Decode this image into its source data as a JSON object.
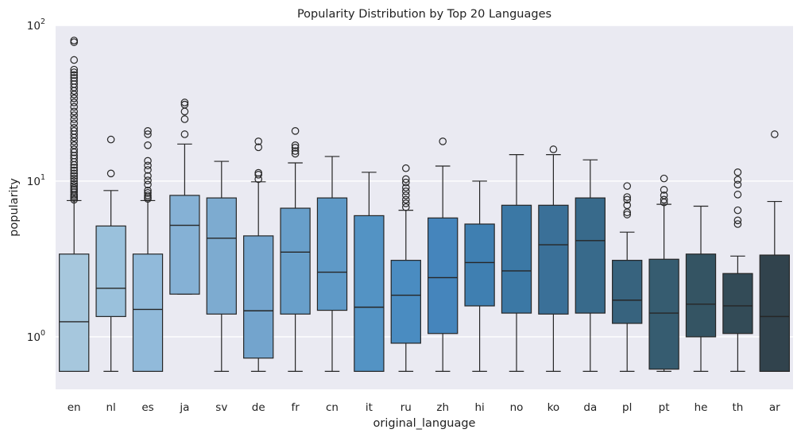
{
  "chart_data": {
    "type": "box",
    "title": "Popularity Distribution by Top 20 Languages",
    "xlabel": "original_language",
    "ylabel": "popularity",
    "yscale": "log",
    "ylim": [
      0.46,
      100
    ],
    "yticks": [
      {
        "value": 1,
        "base": "10",
        "exp": "0"
      },
      {
        "value": 10,
        "base": "10",
        "exp": "1"
      },
      {
        "value": 100,
        "base": "10",
        "exp": "2"
      }
    ],
    "grid": true,
    "background": "#eaeaf2",
    "categories": [
      "en",
      "nl",
      "es",
      "ja",
      "sv",
      "de",
      "fr",
      "cn",
      "it",
      "ru",
      "zh",
      "hi",
      "no",
      "ko",
      "da",
      "pl",
      "pt",
      "he",
      "th",
      "ar"
    ],
    "colors": [
      "#a6c7dd",
      "#9ac1dc",
      "#91bada",
      "#85b1d5",
      "#7dabd0",
      "#73a4cd",
      "#689fca",
      "#5e99c7",
      "#5393c4",
      "#4a8cc1",
      "#4585bc",
      "#3f7fb1",
      "#3b78a5",
      "#3a7098",
      "#386a8b",
      "#37637e",
      "#365c70",
      "#345463",
      "#334b57",
      "#31434d"
    ],
    "boxes": [
      {
        "whislo": 0.6,
        "q1": 0.6,
        "med": 1.25,
        "q3": 3.4,
        "whishi": 7.5,
        "fliers": [
          7.6,
          7.8,
          8,
          8.2,
          8.5,
          8.8,
          9,
          9.3,
          9.6,
          10,
          10.4,
          10.8,
          11.2,
          11.7,
          12.2,
          12.7,
          13.3,
          14,
          14.6,
          15.3,
          16,
          17,
          18,
          19,
          20,
          21,
          22,
          23.5,
          25,
          26.5,
          28,
          30,
          32,
          34,
          36,
          38,
          40,
          42,
          44,
          46,
          48,
          50,
          52,
          60,
          78,
          80
        ]
      },
      {
        "whislo": 0.6,
        "q1": 1.35,
        "med": 2.05,
        "q3": 5.15,
        "whishi": 8.7,
        "fliers": [
          11.2,
          18.5
        ]
      },
      {
        "whislo": 0.6,
        "q1": 0.6,
        "med": 1.5,
        "q3": 3.4,
        "whishi": 7.5,
        "fliers": [
          7.7,
          7.9,
          8.1,
          8.4,
          8.7,
          9.5,
          10.1,
          10.8,
          11.8,
          12.6,
          13.5,
          17,
          20,
          21
        ]
      },
      {
        "whislo": 1.88,
        "q1": 1.88,
        "med": 5.2,
        "q3": 8.1,
        "whishi": 17.3,
        "fliers": [
          20,
          25,
          28,
          31,
          32
        ]
      },
      {
        "whislo": 0.6,
        "q1": 1.4,
        "med": 4.3,
        "q3": 7.8,
        "whishi": 13.4,
        "fliers": []
      },
      {
        "whislo": 0.6,
        "q1": 0.73,
        "med": 1.47,
        "q3": 4.45,
        "whishi": 9.9,
        "fliers": [
          10.3,
          11,
          11.3,
          16.5,
          18
        ]
      },
      {
        "whislo": 0.6,
        "q1": 1.4,
        "med": 3.5,
        "q3": 6.7,
        "whishi": 13.1,
        "fliers": [
          15,
          15.6,
          16.4,
          17,
          21
        ]
      },
      {
        "whislo": 0.6,
        "q1": 1.48,
        "med": 2.6,
        "q3": 7.8,
        "whishi": 14.4,
        "fliers": []
      },
      {
        "whislo": 0.6,
        "q1": 0.6,
        "med": 1.55,
        "q3": 6.0,
        "whishi": 11.4,
        "fliers": []
      },
      {
        "whislo": 0.6,
        "q1": 0.91,
        "med": 1.85,
        "q3": 3.1,
        "whishi": 6.5,
        "fliers": [
          6.8,
          7.2,
          7.6,
          8.1,
          8.6,
          9.1,
          9.8,
          10.3,
          12.1
        ]
      },
      {
        "whislo": 0.6,
        "q1": 1.05,
        "med": 2.4,
        "q3": 5.8,
        "whishi": 12.5,
        "fliers": [
          18
        ]
      },
      {
        "whislo": 0.6,
        "q1": 1.58,
        "med": 3.0,
        "q3": 5.3,
        "whishi": 10,
        "fliers": []
      },
      {
        "whislo": 0.6,
        "q1": 1.42,
        "med": 2.65,
        "q3": 7.0,
        "whishi": 14.8,
        "fliers": []
      },
      {
        "whislo": 0.6,
        "q1": 1.4,
        "med": 3.9,
        "q3": 7.0,
        "whishi": 14.8,
        "fliers": [
          16
        ]
      },
      {
        "whislo": 0.6,
        "q1": 1.42,
        "med": 4.15,
        "q3": 7.8,
        "whishi": 13.7,
        "fliers": []
      },
      {
        "whislo": 0.6,
        "q1": 1.22,
        "med": 1.72,
        "q3": 3.1,
        "whishi": 4.7,
        "fliers": [
          6.1,
          6.3,
          7.0,
          7.6,
          7.9,
          9.3
        ]
      },
      {
        "whislo": 0.6,
        "q1": 0.62,
        "med": 1.42,
        "q3": 3.15,
        "whishi": 7.1,
        "fliers": [
          7.3,
          7.6,
          8.1,
          8.8,
          10.4
        ]
      },
      {
        "whislo": 0.6,
        "q1": 1.0,
        "med": 1.62,
        "q3": 3.4,
        "whishi": 6.9,
        "fliers": []
      },
      {
        "whislo": 0.6,
        "q1": 1.05,
        "med": 1.58,
        "q3": 2.55,
        "whishi": 3.3,
        "fliers": [
          5.3,
          5.6,
          6.5,
          8.2,
          9.5,
          10.2,
          11.4
        ]
      },
      {
        "whislo": 0.6,
        "q1": 0.6,
        "med": 1.35,
        "q3": 3.35,
        "whishi": 7.4,
        "fliers": [
          20
        ]
      }
    ]
  }
}
